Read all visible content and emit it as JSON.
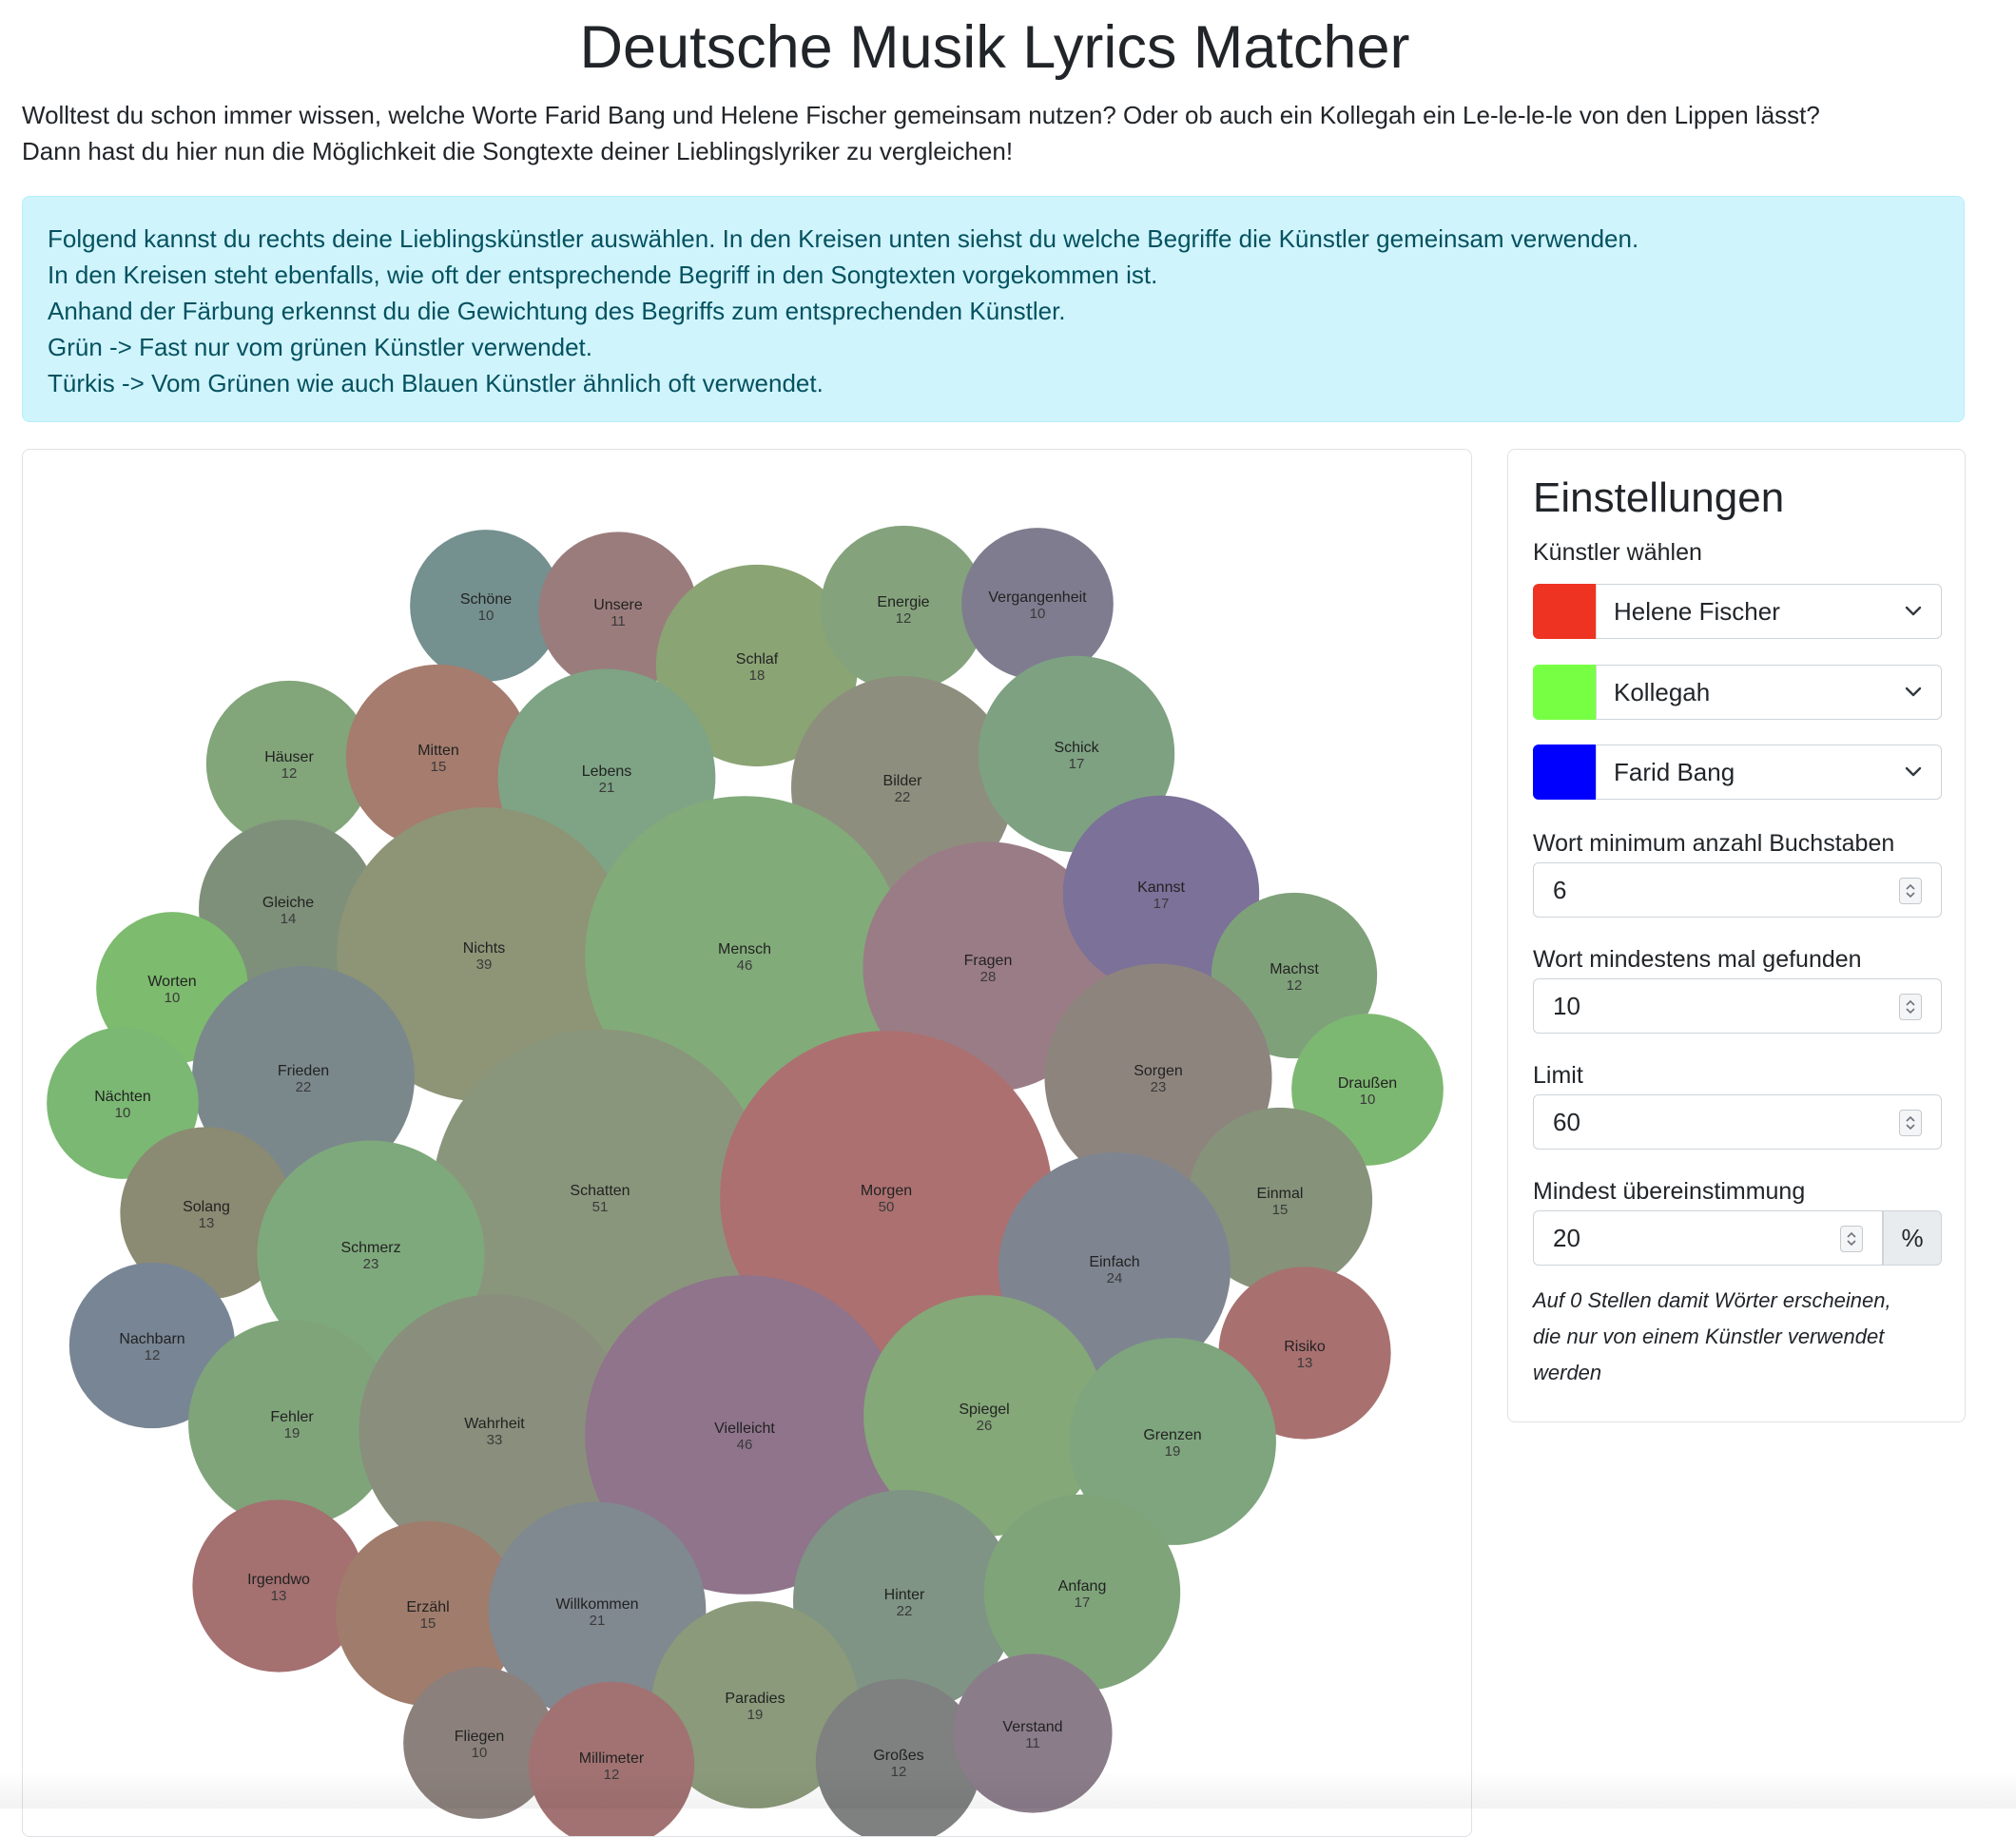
{
  "header": {
    "title": "Deutsche Musik Lyrics Matcher",
    "intro_lines": [
      "Wolltest du schon immer wissen, welche Worte Farid Bang und Helene Fischer gemeinsam nutzen? Oder ob auch ein Kollegah ein Le-le-le-le von den Lippen lässt?",
      "Dann hast du hier nun die Möglichkeit die Songtexte deiner Lieblingslyriker zu vergleichen!"
    ]
  },
  "info": {
    "lines": [
      "Folgend kannst du rechts deine Lieblingskünstler auswählen. In den Kreisen unten siehst du welche Begriffe die Künstler gemeinsam verwenden.",
      "In den Kreisen steht ebenfalls, wie oft der entsprechende Begriff in den Songtexten vorgekommen ist.",
      "Anhand der Färbung erkennst du die Gewichtung des Begriffs zum entsprechenden Künstler.",
      "Grün -> Fast nur vom grünen Künstler verwendet.",
      "Türkis -> Vom Grünen wie auch Blauen Künstler ähnlich oft verwendet."
    ]
  },
  "settings": {
    "title": "Einstellungen",
    "artists_label": "Künstler wählen",
    "artists": [
      {
        "name": "Helene Fischer",
        "color": "#ee3322"
      },
      {
        "name": "Kollegah",
        "color": "#77ff44"
      },
      {
        "name": "Farid Bang",
        "color": "#0000ff"
      }
    ],
    "min_letters_label": "Wort minimum anzahl Buchstaben",
    "min_letters_value": "6",
    "min_found_label": "Wort mindestens mal gefunden",
    "min_found_value": "10",
    "limit_label": "Limit",
    "limit_value": "60",
    "match_label": "Mindest übereinstimmung",
    "match_value": "20",
    "match_unit": "%",
    "hint_lines": [
      "Auf 0 Stellen damit Wörter erscheinen,",
      "die nur von einem Künstler verwendet",
      "werden"
    ]
  },
  "chart_data": {
    "type": "bubble",
    "value_label": "occurrences",
    "words": [
      {
        "word": "Schöne",
        "count": 10,
        "color": "#74908f"
      },
      {
        "word": "Unsere",
        "count": 11,
        "color": "#9b7c7c"
      },
      {
        "word": "Schlaf",
        "count": 18,
        "color": "#8aa474"
      },
      {
        "word": "Energie",
        "count": 12,
        "color": "#84a37c"
      },
      {
        "word": "Vergangenheit",
        "count": 10,
        "color": "#7f7c8f"
      },
      {
        "word": "Häuser",
        "count": 12,
        "color": "#82a57a"
      },
      {
        "word": "Mitten",
        "count": 15,
        "color": "#a57c6e"
      },
      {
        "word": "Lebens",
        "count": 21,
        "color": "#7ea485"
      },
      {
        "word": "Bilder",
        "count": 22,
        "color": "#8e8e7e"
      },
      {
        "word": "Schick",
        "count": 17,
        "color": "#7ea182"
      },
      {
        "word": "Gleiche",
        "count": 14,
        "color": "#7e907a"
      },
      {
        "word": "Nichts",
        "count": 39,
        "color": "#8e9476"
      },
      {
        "word": "Mensch",
        "count": 46,
        "color": "#82ab7a"
      },
      {
        "word": "Fragen",
        "count": 28,
        "color": "#9a7c86"
      },
      {
        "word": "Kannst",
        "count": 17,
        "color": "#7b7199"
      },
      {
        "word": "Worten",
        "count": 10,
        "color": "#7dbb6e"
      },
      {
        "word": "Machst",
        "count": 12,
        "color": "#7fa17a"
      },
      {
        "word": "Frieden",
        "count": 22,
        "color": "#7b888b"
      },
      {
        "word": "Sorgen",
        "count": 23,
        "color": "#8e847e"
      },
      {
        "word": "Nächten",
        "count": 10,
        "color": "#7bb873"
      },
      {
        "word": "Draußen",
        "count": 10,
        "color": "#7db872"
      },
      {
        "word": "Solang",
        "count": 13,
        "color": "#8b8a72"
      },
      {
        "word": "Schatten",
        "count": 51,
        "color": "#8a967c"
      },
      {
        "word": "Morgen",
        "count": 50,
        "color": "#ac7070"
      },
      {
        "word": "Einmal",
        "count": 15,
        "color": "#86927a"
      },
      {
        "word": "Schmerz",
        "count": 23,
        "color": "#7ea97c"
      },
      {
        "word": "Einfach",
        "count": 24,
        "color": "#7e8590"
      },
      {
        "word": "Nachbarn",
        "count": 12,
        "color": "#788595"
      },
      {
        "word": "Risiko",
        "count": 13,
        "color": "#a97070"
      },
      {
        "word": "Fehler",
        "count": 19,
        "color": "#7fa47a"
      },
      {
        "word": "Wahrheit",
        "count": 33,
        "color": "#898f7c"
      },
      {
        "word": "Vielleicht",
        "count": 46,
        "color": "#8f748b"
      },
      {
        "word": "Spiegel",
        "count": 26,
        "color": "#84a878"
      },
      {
        "word": "Grenzen",
        "count": 19,
        "color": "#7ea57e"
      },
      {
        "word": "Irgendwo",
        "count": 13,
        "color": "#a47070"
      },
      {
        "word": "Erzähl",
        "count": 15,
        "color": "#a07c6c"
      },
      {
        "word": "Willkommen",
        "count": 21,
        "color": "#808890"
      },
      {
        "word": "Hinter",
        "count": 22,
        "color": "#7f9484"
      },
      {
        "word": "Anfang",
        "count": 17,
        "color": "#7fa47a"
      },
      {
        "word": "Paradies",
        "count": 19,
        "color": "#8a9a7a"
      },
      {
        "word": "Fliegen",
        "count": 10,
        "color": "#8b807c"
      },
      {
        "word": "Millimeter",
        "count": 12,
        "color": "#a27272"
      },
      {
        "word": "Großes",
        "count": 12,
        "color": "#7f8080"
      },
      {
        "word": "Verstand",
        "count": 11,
        "color": "#8b7c8a"
      }
    ]
  }
}
